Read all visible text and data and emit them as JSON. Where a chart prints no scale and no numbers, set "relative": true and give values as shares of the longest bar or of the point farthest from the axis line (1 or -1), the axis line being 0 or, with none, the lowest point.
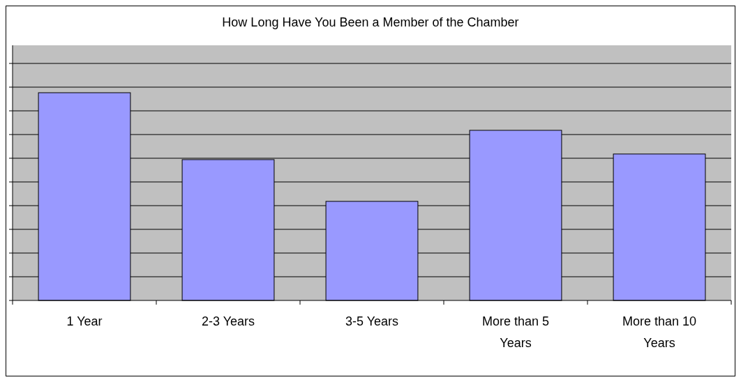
{
  "chart_data": {
    "type": "bar",
    "title": "How Long Have You Been a Member of the Chamber",
    "categories": [
      "1 Year",
      "2-3 Years",
      "3-5 Years",
      "More than 5 Years",
      "More than 10 Years"
    ],
    "values": [
      1,
      0.678,
      0.477,
      0.819,
      0.705
    ],
    "color": "#9999ff",
    "relative": true,
    "grid": "y"
  }
}
